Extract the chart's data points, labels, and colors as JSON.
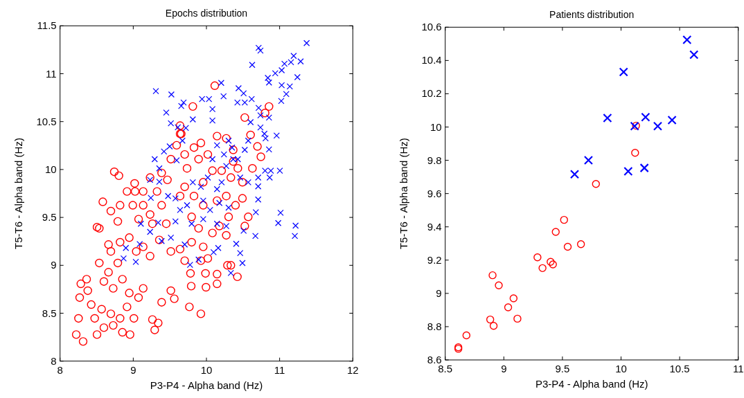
{
  "chart_data": [
    {
      "type": "scatter",
      "title": "Epochs distribution",
      "xlabel": "P3-P4 - Alpha band (Hz)",
      "ylabel": "T5-T6 - Alpha band (Hz)",
      "xlim": [
        8,
        12
      ],
      "ylim": [
        8,
        11.5
      ],
      "xticks": [
        8,
        9,
        10,
        11,
        12
      ],
      "yticks": [
        8,
        8.5,
        9,
        9.5,
        10,
        10.5,
        11,
        11.5
      ],
      "grid": false,
      "series": [
        {
          "color": "#ff0000",
          "marker": "circle",
          "x": [
            8.221,
            8.315,
            8.252,
            8.268,
            8.284,
            8.363,
            8.379,
            8.426,
            8.473,
            8.505,
            8.599,
            8.726,
            8.852,
            8.956,
            8.568,
            8.694,
            8.82,
            9.009,
            8.915,
            8.536,
            8.662,
            8.789,
            8.599,
            8.726,
            8.852,
            8.946,
            9.072,
            9.136,
            8.694,
            8.82,
            8.946,
            9.041,
            9.136,
            9.23,
            8.662,
            8.536,
            8.505,
            8.584,
            8.741,
            8.804,
            8.694,
            8.82,
            8.789,
            8.915,
            9.019,
            9.025,
            8.994,
            9.136,
            9.23,
            9.136,
            9.23,
            9.073,
            9.325,
            9.388,
            9.262,
            9.451,
            9.356,
            9.514,
            9.64,
            9.703,
            9.798,
            9.956,
            9.924,
            10.019,
            9.987,
            9.994,
            9.782,
            9.792,
            10.145,
            10.145,
            10.287,
            10.334,
            10.423,
            9.767,
            9.924,
            9.514,
            9.561,
            9.262,
            9.293,
            9.341,
            9.388,
            10.114,
            9.814,
            9.64,
            9.656,
            9.593,
            9.514,
            9.388,
            9.467,
            9.703,
            9.83,
            9.924,
            9.735,
            9.893,
            10.019,
            10.145,
            10.271,
            10.366,
            10.082,
            10.208,
            10.334,
            9.956,
            9.83,
            9.703,
            9.64,
            9.956,
            10.145,
            10.271,
            10.397,
            10.303,
            10.177,
            10.271,
            10.082,
            9.893,
            9.798,
            10.366,
            10.429,
            10.492,
            10.492,
            10.571,
            10.524,
            10.603,
            10.697,
            10.744,
            10.628,
            10.524,
            10.801,
            10.855,
            9.64
          ],
          "values": [
            8.277,
            8.205,
            8.446,
            8.663,
            8.807,
            8.855,
            8.735,
            8.59,
            8.446,
            8.277,
            8.349,
            8.373,
            8.301,
            8.277,
            8.542,
            8.494,
            8.446,
            8.446,
            8.566,
            9.024,
            8.928,
            9.024,
            8.831,
            8.759,
            8.855,
            8.711,
            8.663,
            8.759,
            9.145,
            9.241,
            9.289,
            9.145,
            9.193,
            9.096,
            9.217,
            9.386,
            9.398,
            9.663,
            9.976,
            9.935,
            9.566,
            9.627,
            9.458,
            9.771,
            9.855,
            9.771,
            9.627,
            9.771,
            9.916,
            9.627,
            9.53,
            9.482,
            9.771,
            9.627,
            9.434,
            9.434,
            9.265,
            9.145,
            9.169,
            9.048,
            9.241,
            9.193,
            9.048,
            9.072,
            8.916,
            8.771,
            8.916,
            8.783,
            8.908,
            8.807,
            9.0,
            9.0,
            8.88,
            8.566,
            8.494,
            8.735,
            8.651,
            8.434,
            8.325,
            8.398,
            8.614,
            10.875,
            10.658,
            10.458,
            10.373,
            10.253,
            10.108,
            9.964,
            9.892,
            10.157,
            10.229,
            10.277,
            10.012,
            10.108,
            10.157,
            10.349,
            10.325,
            10.205,
            9.988,
            9.988,
            9.916,
            9.867,
            9.723,
            9.819,
            9.723,
            9.627,
            9.675,
            9.723,
            9.627,
            9.506,
            9.41,
            9.313,
            9.337,
            9.386,
            9.506,
            10.084,
            10.012,
            9.867,
            9.699,
            9.506,
            9.41,
            10.361,
            10.241,
            10.133,
            10.012,
            10.542,
            10.59,
            10.658,
            10.373
          ]
        },
        {
          "color": "#0000ff",
          "marker": "cross",
          "x": [
            11.369,
            10.713,
            10.738,
            10.625,
            11.192,
            11.155,
            11.287,
            11.066,
            11.028,
            10.94,
            11.243,
            10.839,
            10.855,
            11.028,
            11.139,
            11.091,
            11.022,
            10.202,
            10.234,
            10.439,
            10.508,
            9.309,
            9.521,
            9.688,
            9.656,
            9.94,
            10.035,
            9.451,
            10.082,
            9.814,
            10.082,
            9.514,
            9.609,
            10.423,
            10.524,
            10.618,
            10.713,
            10.738,
            10.855,
            10.959,
            10.792,
            10.738,
            10.808,
            10.855,
            10.801,
            10.88,
            11.003,
            10.864,
            10.707,
            10.707,
            10.707,
            10.675,
            11.013,
            10.981,
            11.218,
            11.208,
            10.669,
            10.508,
            10.407,
            10.461,
            10.492,
            10.334,
            10.161,
            10.098,
            9.893,
            9.776,
            9.293,
            9.356,
            9.42,
            9.498,
            9.23,
            9.24,
            9.593,
            9.672,
            9.719,
            9.356,
            9.476,
            9.577,
            9.64,
            9.735,
            9.814,
            9.924,
            10.019,
            10.082,
            10.145,
            10.24,
            10.303,
            10.35,
            10.271,
            10.366,
            10.208,
            10.145,
            9.956,
            10.05,
            10.177,
            10.303,
            10.429,
            10.524,
            10.461,
            10.571,
            10.571,
            10.603,
            9.341,
            9.23,
            9.088,
            8.899,
            9.035,
            8.868,
            9.388,
            9.514,
            9.703,
            9.577,
            9.798,
            9.956,
            10.145,
            10.271,
            9.104
          ],
          "values": [
            11.32,
            11.27,
            11.241,
            11.092,
            11.186,
            11.12,
            11.128,
            11.104,
            11.036,
            11.005,
            10.964,
            10.957,
            10.908,
            10.88,
            10.867,
            10.788,
            10.716,
            10.904,
            10.764,
            10.848,
            10.795,
            10.819,
            10.783,
            10.699,
            10.663,
            10.735,
            10.735,
            10.595,
            10.631,
            10.523,
            10.511,
            10.482,
            10.441,
            10.699,
            10.699,
            10.735,
            10.643,
            10.566,
            10.542,
            10.354,
            10.373,
            10.439,
            10.325,
            10.21,
            9.988,
            9.988,
            9.988,
            9.916,
            9.916,
            9.824,
            9.687,
            9.554,
            9.549,
            9.441,
            9.414,
            9.306,
            9.306,
            9.361,
            9.224,
            9.128,
            9.024,
            8.92,
            9.181,
            9.137,
            9.06,
            9.005,
            10.108,
            10.012,
            10.188,
            10.241,
            9.892,
            9.704,
            10.096,
            10.301,
            10.434,
            9.872,
            9.723,
            9.699,
            9.578,
            9.627,
            9.867,
            9.819,
            9.916,
            10.108,
            10.253,
            10.157,
            10.301,
            10.229,
            10.036,
            10.108,
            9.867,
            9.795,
            9.675,
            9.578,
            9.651,
            9.602,
            10.108,
            10.205,
            9.916,
            9.867,
            10.301,
            10.494,
            9.446,
            9.349,
            9.222,
            9.181,
            9.036,
            9.072,
            9.253,
            9.289,
            9.217,
            9.458,
            9.434,
            9.482,
            9.434,
            9.41,
            9.434
          ]
        }
      ]
    },
    {
      "type": "scatter",
      "title": "Patients distribution",
      "xlabel": "P3-P4 - Alpha band (Hz)",
      "ylabel": "T5-T6 - Alpha band (Hz)",
      "xlim": [
        8.5,
        11
      ],
      "ylim": [
        8.6,
        10.6
      ],
      "xticks": [
        8.5,
        9,
        9.5,
        10,
        10.5,
        11
      ],
      "yticks": [
        8.6,
        8.8,
        9,
        9.2,
        9.4,
        9.6,
        9.8,
        10,
        10.2,
        10.4,
        10.6
      ],
      "grid": false,
      "series": [
        {
          "color": "#ff0000",
          "marker": "circle",
          "x": [
            8.612,
            8.612,
            8.681,
            8.884,
            8.913,
            8.904,
            8.957,
            9.037,
            9.083,
            9.116,
            9.287,
            9.33,
            9.399,
            9.419,
            9.443,
            9.514,
            9.545,
            9.658,
            9.786,
            10.12,
            10.128
          ],
          "values": [
            8.676,
            8.667,
            8.748,
            8.843,
            8.805,
            9.109,
            9.048,
            8.916,
            8.97,
            8.848,
            9.217,
            9.152,
            9.19,
            9.174,
            9.37,
            9.442,
            9.28,
            9.296,
            9.658,
            9.845,
            10.008
          ]
        },
        {
          "color": "#0000ff",
          "marker": "cross",
          "x": [
            9.604,
            9.722,
            9.884,
            10.022,
            10.061,
            10.116,
            10.199,
            10.209,
            10.313,
            10.435,
            10.563,
            10.622
          ],
          "values": [
            9.716,
            9.8,
            10.054,
            10.331,
            9.734,
            10.005,
            9.754,
            10.059,
            10.005,
            10.042,
            10.524,
            10.435
          ]
        }
      ]
    }
  ]
}
